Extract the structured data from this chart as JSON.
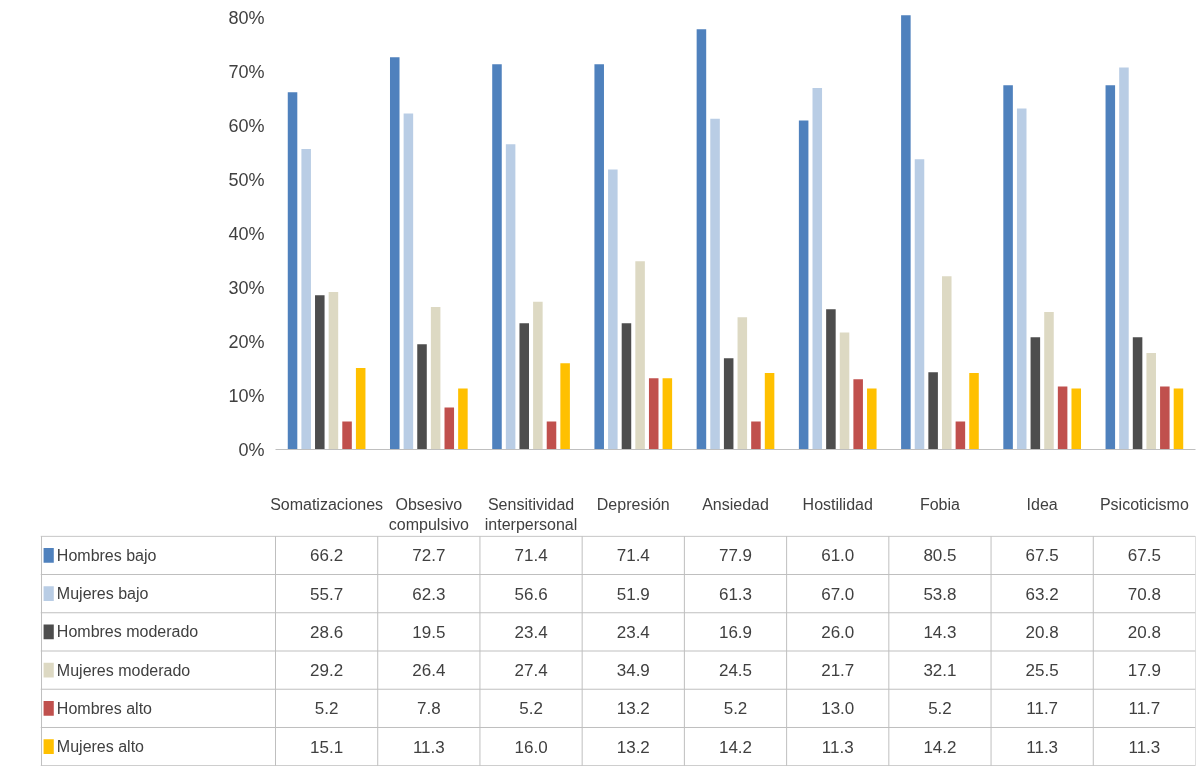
{
  "chart_data": {
    "type": "bar",
    "categories": [
      "Somatizaciones",
      "Obsesivo compulsivo",
      "Sensitividad interpersonal",
      "Depresión",
      "Ansiedad",
      "Hostilidad",
      "Fobia",
      "Idea",
      "Psicoticismo"
    ],
    "series": [
      {
        "name": "Hombres bajo",
        "color": "#4f81bd",
        "values": [
          66.2,
          72.7,
          71.4,
          71.4,
          77.9,
          61.0,
          80.5,
          67.5,
          67.5
        ],
        "value_labels": [
          "66.2",
          "72.7",
          "71.4",
          "71.4",
          "77.9",
          "61.0",
          "80.5",
          "67.5",
          "67.5"
        ]
      },
      {
        "name": "Mujeres bajo",
        "color": "#b9cde5",
        "values": [
          55.7,
          62.3,
          56.6,
          51.9,
          61.3,
          67.0,
          53.8,
          63.2,
          70.8
        ],
        "value_labels": [
          "55.7",
          "62.3",
          "56.6",
          "51.9",
          "61.3",
          "67.0",
          "53.8",
          "63.2",
          "70.8"
        ]
      },
      {
        "name": "Hombres moderado",
        "color": "#4d4d4d",
        "values": [
          28.6,
          19.5,
          23.4,
          23.4,
          16.9,
          26.0,
          14.3,
          20.8,
          20.8
        ],
        "value_labels": [
          "28.6",
          "19.5",
          "23.4",
          "23.4",
          "16.9",
          "26.0",
          "14.3",
          "20.8",
          "20.8"
        ]
      },
      {
        "name": "Mujeres moderado",
        "color": "#ddd9c3",
        "values": [
          29.2,
          26.4,
          27.4,
          34.9,
          24.5,
          21.7,
          32.1,
          25.5,
          17.9
        ],
        "value_labels": [
          "29.2",
          "26.4",
          "27.4",
          "34.9",
          "24.5",
          "21.7",
          "32.1",
          "25.5",
          "17.9"
        ]
      },
      {
        "name": "Hombres alto",
        "color": "#c0504d",
        "values": [
          5.2,
          7.8,
          5.2,
          13.2,
          5.2,
          13.0,
          5.2,
          11.7,
          11.7
        ],
        "value_labels": [
          "5.2",
          "7.8",
          "5.2",
          "13.2",
          "5.2",
          "13.0",
          "5.2",
          "11.7",
          "11.7"
        ]
      },
      {
        "name": "Mujeres alto",
        "color": "#ffc000",
        "values": [
          15.1,
          11.3,
          16.0,
          13.2,
          14.2,
          11.3,
          14.2,
          11.3,
          11.3
        ],
        "value_labels": [
          "15.1",
          "11.3",
          "16.0",
          "13.2",
          "14.2",
          "11.3",
          "14.2",
          "11.3",
          "11.3"
        ]
      }
    ],
    "ylim": [
      0,
      81
    ],
    "yticks": [
      {
        "value": 0,
        "label": "0%"
      },
      {
        "value": 10,
        "label": "10%"
      },
      {
        "value": 20,
        "label": "20%"
      },
      {
        "value": 30,
        "label": "30%"
      },
      {
        "value": 40,
        "label": "40%"
      },
      {
        "value": 50,
        "label": "50%"
      },
      {
        "value": 60,
        "label": "60%"
      },
      {
        "value": 70,
        "label": "70%"
      },
      {
        "value": 80,
        "label": "80%"
      }
    ],
    "legend": "bottom left"
  }
}
